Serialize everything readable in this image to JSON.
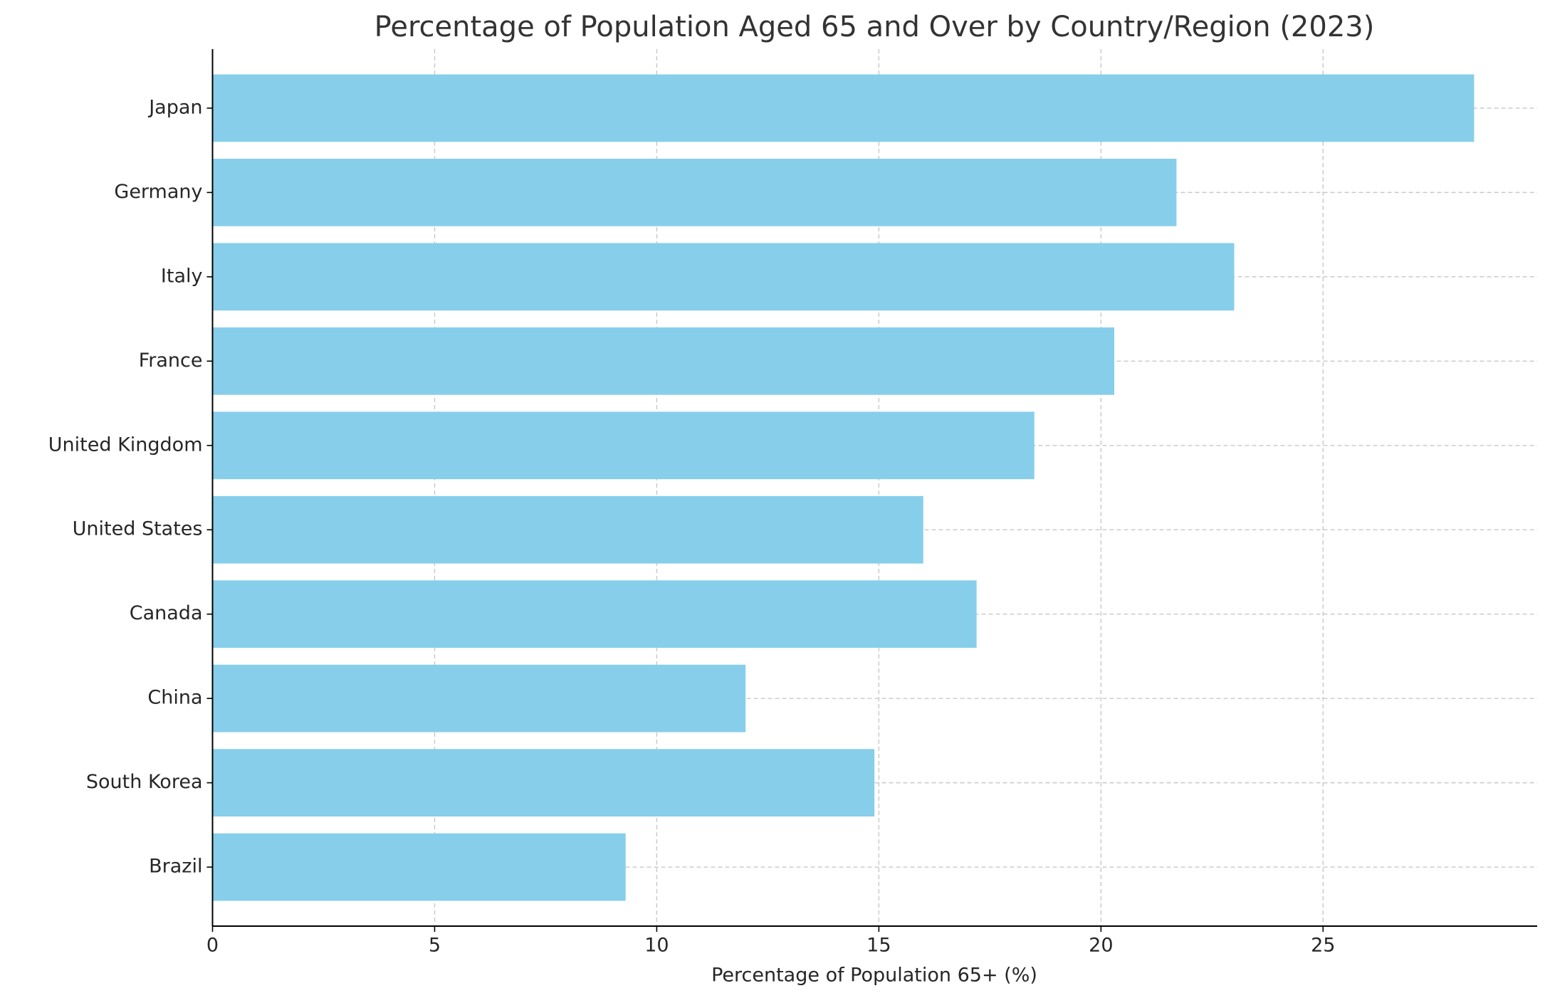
{
  "chart_data": {
    "type": "barh",
    "title": "Percentage of Population Aged 65 and Over by Country/Region (2023)",
    "x_label": "Percentage of Population 65+ (%)",
    "categories": [
      "Japan",
      "Germany",
      "Italy",
      "France",
      "United Kingdom",
      "United States",
      "Canada",
      "China",
      "South Korea",
      "Brazil"
    ],
    "values": [
      28.4,
      21.7,
      23.0,
      20.3,
      18.5,
      16.0,
      17.2,
      12.0,
      14.9,
      9.3
    ],
    "color": "#87ceeb",
    "xlim": [
      0,
      29.82
    ],
    "xticks": [
      0,
      5,
      10,
      15,
      20,
      25
    ],
    "grid": true
  }
}
